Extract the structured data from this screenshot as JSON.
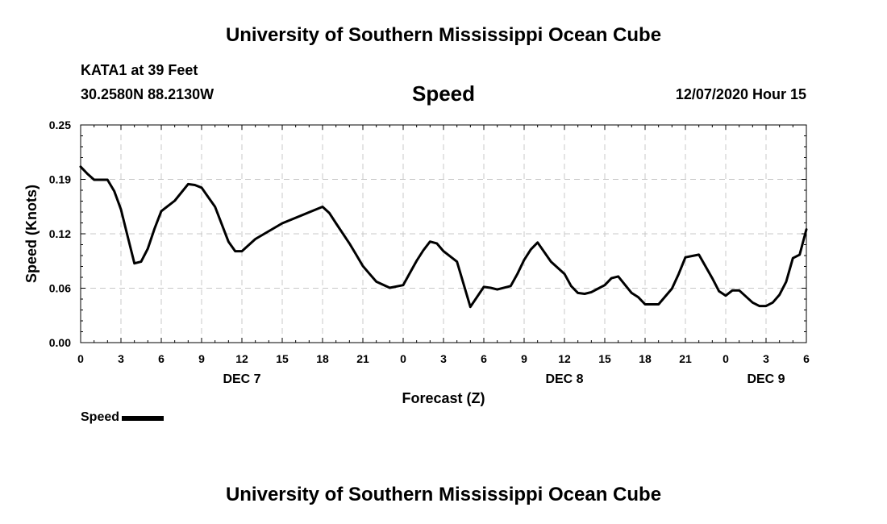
{
  "header": {
    "title": "University of Southern Mississippi Ocean Cube",
    "station": "KATA1 at 39 Feet",
    "location": "30.2580N 88.2130W",
    "variable": "Speed",
    "issued": "12/07/2020 Hour 15"
  },
  "footer": {
    "title": "University of Southern Mississippi Ocean Cube"
  },
  "legend": {
    "label": "Speed"
  },
  "chart_data": {
    "type": "line",
    "title": "Speed",
    "xlabel": "Forecast (Z)",
    "ylabel": "Speed (Knots)",
    "xlim": [
      0,
      54
    ],
    "ylim": [
      0,
      0.25
    ],
    "grid": true,
    "y_ticks": [
      {
        "value": 0.0,
        "label": "0.00"
      },
      {
        "value": 0.0625,
        "label": "0.06"
      },
      {
        "value": 0.125,
        "label": "0.12"
      },
      {
        "value": 0.1875,
        "label": "0.19"
      },
      {
        "value": 0.25,
        "label": "0.25"
      }
    ],
    "x_ticks": [
      {
        "value": 0,
        "label": "0"
      },
      {
        "value": 3,
        "label": "3"
      },
      {
        "value": 6,
        "label": "6"
      },
      {
        "value": 9,
        "label": "9"
      },
      {
        "value": 12,
        "label": "12"
      },
      {
        "value": 15,
        "label": "15"
      },
      {
        "value": 18,
        "label": "18"
      },
      {
        "value": 21,
        "label": "21"
      },
      {
        "value": 24,
        "label": "0"
      },
      {
        "value": 27,
        "label": "3"
      },
      {
        "value": 30,
        "label": "6"
      },
      {
        "value": 33,
        "label": "9"
      },
      {
        "value": 36,
        "label": "12"
      },
      {
        "value": 39,
        "label": "15"
      },
      {
        "value": 42,
        "label": "18"
      },
      {
        "value": 45,
        "label": "21"
      },
      {
        "value": 48,
        "label": "0"
      },
      {
        "value": 51,
        "label": "3"
      },
      {
        "value": 54,
        "label": "6"
      }
    ],
    "date_labels": [
      {
        "value": 12,
        "label": "DEC 7"
      },
      {
        "value": 36,
        "label": "DEC 8"
      },
      {
        "value": 51,
        "label": "DEC 9"
      }
    ],
    "series": [
      {
        "name": "Speed",
        "color": "#000000",
        "x": [
          0,
          0.5,
          1,
          2,
          2.5,
          3,
          3.5,
          4,
          4.5,
          5,
          5.5,
          6,
          7,
          8,
          8.5,
          9,
          9.5,
          10,
          11,
          11.5,
          12,
          13,
          15,
          18,
          18.5,
          19,
          20,
          20.5,
          21,
          21.5,
          22,
          23,
          24,
          24.5,
          25,
          25.5,
          26,
          26.5,
          27,
          28,
          29,
          30,
          30.5,
          31,
          32,
          32.5,
          33,
          33.5,
          34,
          35,
          36,
          36.5,
          37,
          37.5,
          38,
          38.5,
          39,
          39.5,
          40,
          41,
          41.5,
          42,
          43,
          44,
          44.5,
          45,
          46,
          47,
          47.5,
          48,
          48.5,
          49,
          50,
          50.5,
          51,
          51.5,
          52,
          52.5,
          53,
          53.5,
          54
        ],
        "y": [
          0.202,
          0.194,
          0.187,
          0.187,
          0.174,
          0.153,
          0.122,
          0.091,
          0.093,
          0.108,
          0.131,
          0.151,
          0.163,
          0.182,
          0.181,
          0.178,
          0.167,
          0.156,
          0.116,
          0.105,
          0.105,
          0.119,
          0.137,
          0.156,
          0.149,
          0.137,
          0.114,
          0.101,
          0.088,
          0.079,
          0.07,
          0.063,
          0.066,
          0.08,
          0.094,
          0.106,
          0.116,
          0.114,
          0.105,
          0.093,
          0.041,
          0.064,
          0.063,
          0.061,
          0.065,
          0.079,
          0.095,
          0.107,
          0.115,
          0.093,
          0.079,
          0.065,
          0.057,
          0.056,
          0.058,
          0.062,
          0.066,
          0.074,
          0.076,
          0.057,
          0.052,
          0.044,
          0.044,
          0.062,
          0.079,
          0.098,
          0.101,
          0.074,
          0.059,
          0.054,
          0.06,
          0.06,
          0.046,
          0.042,
          0.042,
          0.046,
          0.055,
          0.07,
          0.097,
          0.101,
          0.13
        ]
      }
    ]
  }
}
